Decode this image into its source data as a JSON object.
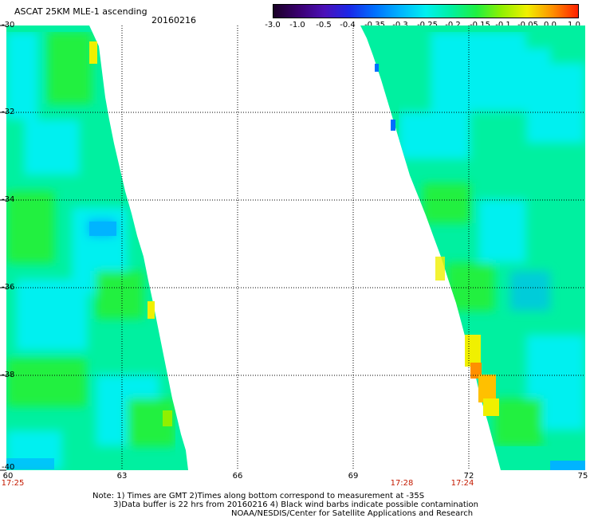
{
  "header": {
    "title": "ASCAT 25KM MLE-1 ascending",
    "date": "20160216"
  },
  "colorbar": {
    "labels": [
      "-3.0",
      "-1.0",
      "-0.5",
      "-0.4",
      "-0.35",
      "-0.3",
      "-0.25",
      "-0.2",
      "-0.15",
      "-0.1",
      "-0.05",
      "0.0",
      "1.0"
    ],
    "colors": [
      "#1a0026",
      "#3a0070",
      "#4b10b8",
      "#1b28e8",
      "#0070ff",
      "#00b4ff",
      "#00f0f0",
      "#00f0a0",
      "#20f040",
      "#90f000",
      "#f0f000",
      "#ff9000",
      "#ff2000"
    ]
  },
  "axes": {
    "lat_labels": [
      "-30",
      "-32",
      "-34",
      "-36",
      "-38",
      "-40"
    ],
    "lon_labels": [
      "60",
      "63",
      "66",
      "69",
      "72",
      "75"
    ]
  },
  "times": [
    "17:25",
    "17:28",
    "17:24"
  ],
  "notes": [
    "Note: 1) Times are GMT 2)Times along bottom correspond to measurement at -35S",
    "3)Data buffer is 22 hrs from 20160216 4) Black wind barbs indicate possible contamination",
    "NOAA/NESDIS/Center for Satellite Applications and Research"
  ],
  "map_colors": {
    "cyan": "#00f0f0",
    "sea_green": "#00f0a0",
    "green": "#20f040",
    "blue": "#00b4ff",
    "yellow": "#f0f000",
    "orange": "#ff9000"
  }
}
